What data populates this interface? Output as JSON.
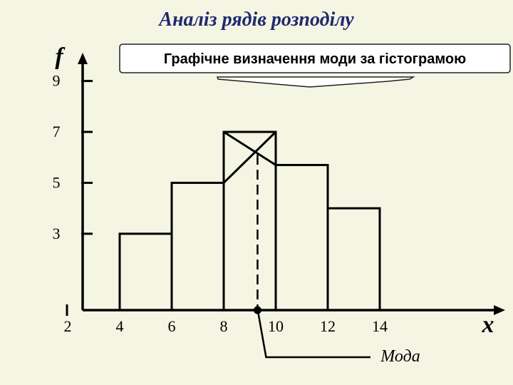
{
  "slide": {
    "title": "Аналіз рядів розподілу",
    "callout": "Графічне визначення моди за гістограмою",
    "mode_label": "Мода"
  },
  "colors": {
    "background": "#f5f5e4",
    "title": "#1f2a6e",
    "ink": "#000000"
  },
  "chart_data": {
    "type": "bar",
    "subtype": "histogram",
    "xlabel": "x",
    "ylabel": "f",
    "x_ticks": [
      2,
      4,
      6,
      8,
      10,
      12,
      14
    ],
    "y_ticks": [
      3,
      5,
      7,
      9
    ],
    "xlim": [
      0.5,
      16
    ],
    "ylim": [
      0,
      9.5
    ],
    "bins": [
      {
        "from": 4,
        "to": 6,
        "value": 3
      },
      {
        "from": 6,
        "to": 8,
        "value": 5
      },
      {
        "from": 8,
        "to": 10,
        "value": 7
      },
      {
        "from": 10,
        "to": 12,
        "value": 5.7
      },
      {
        "from": 12,
        "to": 14,
        "value": 4
      }
    ],
    "mode": 9.3,
    "grid": false
  }
}
